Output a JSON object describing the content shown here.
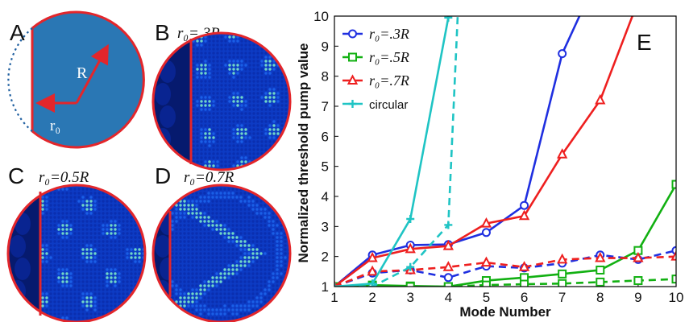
{
  "panels": [
    {
      "letter": "A",
      "caption": "",
      "type": "schematic",
      "label_R": "R",
      "label_r0": "r₀"
    },
    {
      "letter": "B",
      "caption": "r₀=.3R",
      "type": "field",
      "pattern": "b"
    },
    {
      "letter": "C",
      "caption": "r₀=0.5R",
      "type": "field",
      "pattern": "c"
    },
    {
      "letter": "D",
      "caption": "r₀=0.7R",
      "type": "field",
      "pattern": "d"
    }
  ],
  "colors": {
    "disk_fill": "#2a77b4",
    "disk_edge": "#e3262b",
    "field_dark": "#061a6e",
    "field_mid": "#1a5ee6",
    "field_bright": "#6fd6c8"
  },
  "chart_data": {
    "type": "line",
    "panel_letter": "E",
    "xlabel": "Mode Number",
    "ylabel": "Normalized threshold pump value",
    "xlim": [
      1,
      10
    ],
    "ylim": [
      1,
      10
    ],
    "xticks": [
      1,
      2,
      3,
      4,
      5,
      6,
      7,
      8,
      9,
      10
    ],
    "yticks": [
      1,
      2,
      3,
      4,
      5,
      6,
      7,
      8,
      9,
      10
    ],
    "grid": false,
    "legend_position": "top-left",
    "series": [
      {
        "name": "r₀=.3R",
        "color": "#1f2fe0",
        "marker": "circle",
        "style": "solid",
        "x": [
          1,
          2,
          3,
          4,
          5,
          6,
          7,
          8
        ],
        "y": [
          1.0,
          2.05,
          2.38,
          2.4,
          2.8,
          3.7,
          8.75,
          11.5
        ]
      },
      {
        "name": "",
        "color": "#1f2fe0",
        "marker": "circle",
        "style": "dashed",
        "x": [
          1,
          2,
          3,
          4,
          5,
          6,
          7,
          8,
          9,
          10
        ],
        "y": [
          1.0,
          1.45,
          1.55,
          1.3,
          1.68,
          1.62,
          1.78,
          2.05,
          1.9,
          2.2
        ]
      },
      {
        "name": "r₀=.5R",
        "color": "#12b012",
        "marker": "square",
        "style": "solid",
        "x": [
          1,
          2,
          3,
          4,
          5,
          6,
          7,
          8,
          9,
          10
        ],
        "y": [
          1.0,
          1.05,
          1.02,
          1.0,
          1.2,
          1.3,
          1.42,
          1.55,
          2.2,
          4.4
        ]
      },
      {
        "name": "",
        "color": "#12b012",
        "marker": "square",
        "style": "dashed",
        "x": [
          1,
          2,
          3,
          4,
          5,
          6,
          7,
          8,
          9,
          10
        ],
        "y": [
          1.0,
          1.0,
          1.0,
          1.0,
          1.05,
          1.08,
          1.1,
          1.15,
          1.2,
          1.25
        ]
      },
      {
        "name": "r₀=.7R",
        "color": "#ee1f1f",
        "marker": "triangle",
        "style": "solid",
        "x": [
          1,
          2,
          3,
          4,
          5,
          6,
          7,
          8,
          9
        ],
        "y": [
          1.0,
          1.95,
          2.25,
          2.35,
          3.1,
          3.35,
          5.4,
          7.2,
          10.5
        ]
      },
      {
        "name": "",
        "color": "#ee1f1f",
        "marker": "triangle",
        "style": "dashed",
        "x": [
          1,
          2,
          3,
          4,
          5,
          6,
          7,
          8,
          9,
          10
        ],
        "y": [
          1.0,
          1.5,
          1.55,
          1.65,
          1.8,
          1.65,
          1.9,
          1.95,
          1.95,
          2.0
        ]
      },
      {
        "name": "circular",
        "color": "#1fc4c4",
        "marker": "plus",
        "style": "solid",
        "x": [
          1,
          2,
          3,
          4,
          4.15
        ],
        "y": [
          1.0,
          1.1,
          3.25,
          9.95,
          11.5
        ]
      },
      {
        "name": "",
        "color": "#1fc4c4",
        "marker": "plus",
        "style": "dashed",
        "x": [
          1,
          2,
          3,
          4,
          4.3
        ],
        "y": [
          1.0,
          1.0,
          1.65,
          3.05,
          11.5
        ]
      }
    ]
  }
}
